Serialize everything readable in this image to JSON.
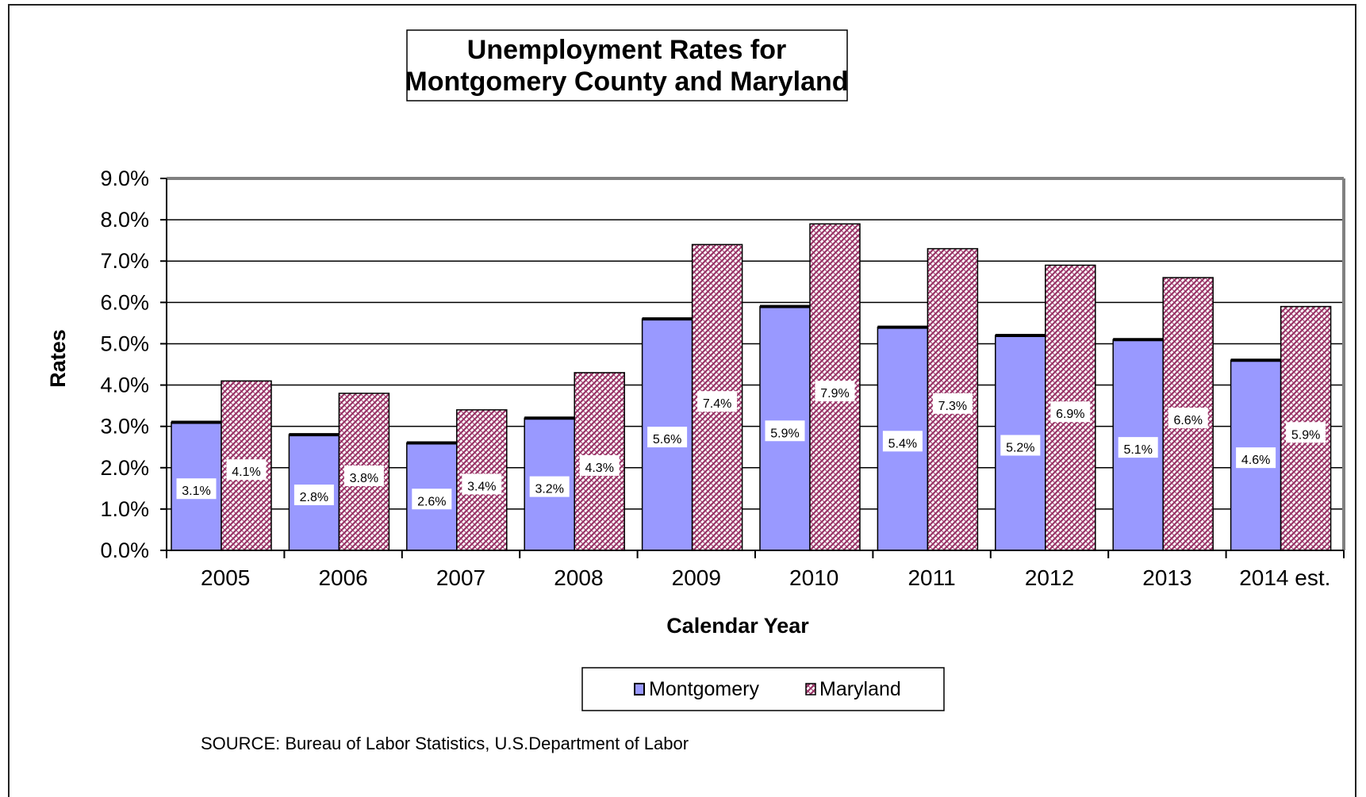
{
  "chart_data": {
    "type": "bar",
    "title_lines": [
      "Unemployment Rates for",
      "Montgomery County and Maryland"
    ],
    "xlabel": "Calendar Year",
    "ylabel": "Rates",
    "ylim": [
      0,
      9
    ],
    "yticks": [
      "0.0%",
      "1.0%",
      "2.0%",
      "3.0%",
      "4.0%",
      "5.0%",
      "6.0%",
      "7.0%",
      "8.0%",
      "9.0%"
    ],
    "categories": [
      "2005",
      "2006",
      "2007",
      "2008",
      "2009",
      "2010",
      "2011",
      "2012",
      "2013",
      "2014 est."
    ],
    "series": [
      {
        "name": "Montgomery",
        "values": [
          3.1,
          2.8,
          2.6,
          3.2,
          5.6,
          5.9,
          5.4,
          5.2,
          5.1,
          4.6
        ],
        "labels": [
          "3.1%",
          "2.8%",
          "2.6%",
          "3.2%",
          "5.6%",
          "5.9%",
          "5.4%",
          "5.2%",
          "5.1%",
          "4.6%"
        ],
        "color": "#9999ff"
      },
      {
        "name": "Maryland",
        "values": [
          4.1,
          3.8,
          3.4,
          4.3,
          7.4,
          7.9,
          7.3,
          6.9,
          6.6,
          5.9
        ],
        "labels": [
          "4.1%",
          "3.8%",
          "3.4%",
          "4.3%",
          "7.4%",
          "7.9%",
          "7.3%",
          "6.9%",
          "6.6%",
          "5.9%"
        ],
        "color": "#993366"
      }
    ],
    "grid": true,
    "legend_position": "bottom"
  },
  "source": "SOURCE:  Bureau of Labor Statistics, U.S.Department of Labor"
}
